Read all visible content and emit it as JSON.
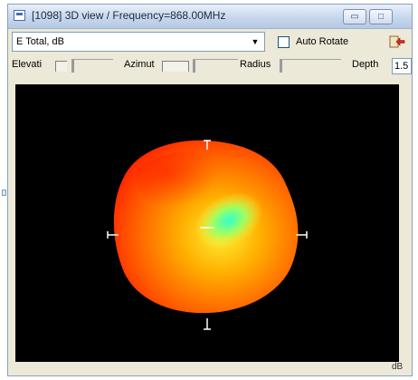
{
  "window": {
    "title": "[1098] 3D view / Frequency=868.00MHz",
    "minimize_glyph": "▭",
    "maximize_glyph": "□"
  },
  "toolbar": {
    "field_select_value": "E Total, dB",
    "dropdown_glyph": "▼",
    "auto_rotate_label": "Auto Rotate",
    "auto_rotate_checked": false,
    "export_icon": "export-arrow-icon"
  },
  "controls": {
    "elevation_label": "Elevati",
    "azimuth_label": "Azimut",
    "radius_label": "Radius",
    "depth_label": "Depth",
    "depth_value": "1.5"
  },
  "viewport": {
    "unit_label": "dB",
    "background": "#000000",
    "colors": {
      "low": "#ff3300",
      "mid": "#ffcc00",
      "high": "#33ffcc"
    }
  }
}
